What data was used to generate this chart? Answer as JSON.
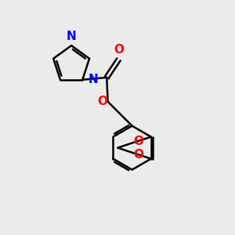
{
  "background_color": "#ebebeb",
  "bond_color": "#000000",
  "n_color": "#0000ff",
  "o_color": "#ff0000",
  "line_width": 1.8,
  "font_size": 11,
  "figsize": [
    3.0,
    3.0
  ],
  "dpi": 100,
  "xlim": [
    0,
    10
  ],
  "ylim": [
    0,
    10
  ]
}
